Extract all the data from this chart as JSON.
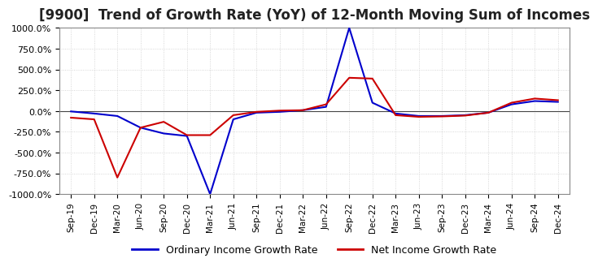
{
  "title": "[9900]  Trend of Growth Rate (YoY) of 12-Month Moving Sum of Incomes",
  "title_fontsize": 12,
  "ylim": [
    -1000,
    1000
  ],
  "yticks": [
    -1000,
    -750,
    -500,
    -250,
    0,
    250,
    500,
    750,
    1000
  ],
  "background_color": "#ffffff",
  "plot_bg_color": "#ffffff",
  "grid_color": "#cccccc",
  "ordinary_color": "#0000cc",
  "net_color": "#cc0000",
  "legend_ordinary": "Ordinary Income Growth Rate",
  "legend_net": "Net Income Growth Rate",
  "x_labels": [
    "Sep-19",
    "Dec-19",
    "Mar-20",
    "Jun-20",
    "Sep-20",
    "Dec-20",
    "Mar-21",
    "Jun-21",
    "Sep-21",
    "Dec-21",
    "Mar-22",
    "Jun-22",
    "Sep-22",
    "Dec-22",
    "Mar-23",
    "Jun-23",
    "Sep-23",
    "Dec-23",
    "Mar-24",
    "Jun-24",
    "Sep-24",
    "Dec-24"
  ],
  "ordinary_data": [
    [
      "Sep-19",
      -5.0
    ],
    [
      "Dec-19",
      -30.0
    ],
    [
      "Mar-20",
      -60.0
    ],
    [
      "Jun-20",
      -200.0
    ],
    [
      "Sep-20",
      -270.0
    ],
    [
      "Dec-20",
      -300.0
    ],
    [
      "Mar-21",
      -1000.0
    ],
    [
      "Jun-21",
      -100.0
    ],
    [
      "Sep-21",
      -20.0
    ],
    [
      "Dec-21",
      -10.0
    ],
    [
      "Mar-22",
      10.0
    ],
    [
      "Jun-22",
      50.0
    ],
    [
      "Sep-22",
      1000.0
    ],
    [
      "Dec-22",
      100.0
    ],
    [
      "Mar-23",
      -30.0
    ],
    [
      "Jun-23",
      -60.0
    ],
    [
      "Sep-23",
      -60.0
    ],
    [
      "Dec-23",
      -50.0
    ],
    [
      "Mar-24",
      -20.0
    ],
    [
      "Jun-24",
      80.0
    ],
    [
      "Sep-24",
      120.0
    ],
    [
      "Dec-24",
      110.0
    ]
  ],
  "net_data": [
    [
      "Sep-19",
      -80.0
    ],
    [
      "Dec-19",
      -100.0
    ],
    [
      "Mar-20",
      -800.0
    ],
    [
      "Jun-20",
      -200.0
    ],
    [
      "Sep-20",
      -130.0
    ],
    [
      "Dec-20",
      -290.0
    ],
    [
      "Mar-21",
      -290.0
    ],
    [
      "Jun-21",
      -50.0
    ],
    [
      "Sep-21",
      -10.0
    ],
    [
      "Dec-21",
      5.0
    ],
    [
      "Mar-22",
      10.0
    ],
    [
      "Jun-22",
      80.0
    ],
    [
      "Sep-22",
      400.0
    ],
    [
      "Dec-22",
      390.0
    ],
    [
      "Mar-23",
      -50.0
    ],
    [
      "Jun-23",
      -70.0
    ],
    [
      "Sep-23",
      -65.0
    ],
    [
      "Dec-23",
      -55.0
    ],
    [
      "Mar-24",
      -20.0
    ],
    [
      "Jun-24",
      100.0
    ],
    [
      "Sep-24",
      150.0
    ],
    [
      "Dec-24",
      130.0
    ]
  ]
}
